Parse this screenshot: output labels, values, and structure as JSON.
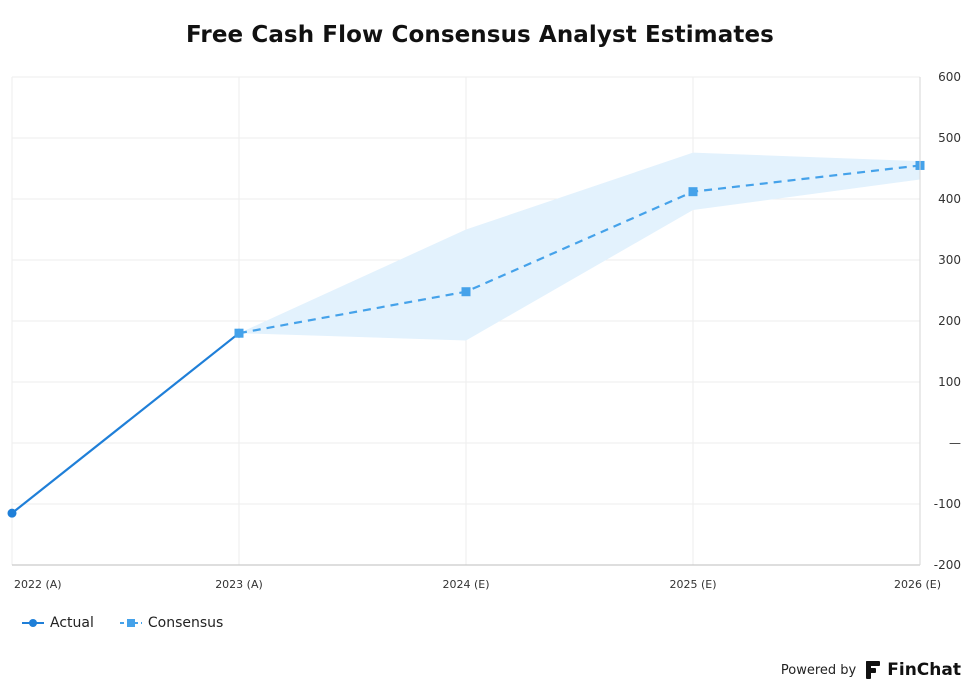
{
  "chart_data": {
    "type": "line",
    "title": "Free Cash Flow Consensus Analyst Estimates",
    "categories": [
      "2022 (A)",
      "2023 (A)",
      "2024 (E)",
      "2025 (E)",
      "2026 (E)"
    ],
    "ylim": [
      -200,
      600
    ],
    "yticks": [
      {
        "value": 600,
        "label": "600"
      },
      {
        "value": 500,
        "label": "500"
      },
      {
        "value": 400,
        "label": "400"
      },
      {
        "value": 300,
        "label": "300"
      },
      {
        "value": 200,
        "label": "200"
      },
      {
        "value": 100,
        "label": "100"
      },
      {
        "value": 0,
        "label": "—"
      },
      {
        "value": -100,
        "label": "-100"
      },
      {
        "value": -200,
        "label": "-200"
      }
    ],
    "series": [
      {
        "name": "Actual",
        "values": [
          -115,
          180,
          null,
          null,
          null
        ],
        "color": "#1f7fd8",
        "style": "solid",
        "marker": "circle"
      },
      {
        "name": "Consensus",
        "values": [
          null,
          180,
          248,
          412,
          455
        ],
        "color": "#45a2ea",
        "style": "dashed",
        "marker": "square"
      }
    ],
    "range_band": {
      "low": [
        null,
        180,
        168,
        382,
        432
      ],
      "high": [
        null,
        180,
        350,
        476,
        462
      ],
      "color": "#e3f2fd"
    },
    "axis_position": "right",
    "grid": true,
    "legend_position": "bottom-left"
  },
  "footer": {
    "powered_label": "Powered by",
    "brand": "FinChat"
  }
}
